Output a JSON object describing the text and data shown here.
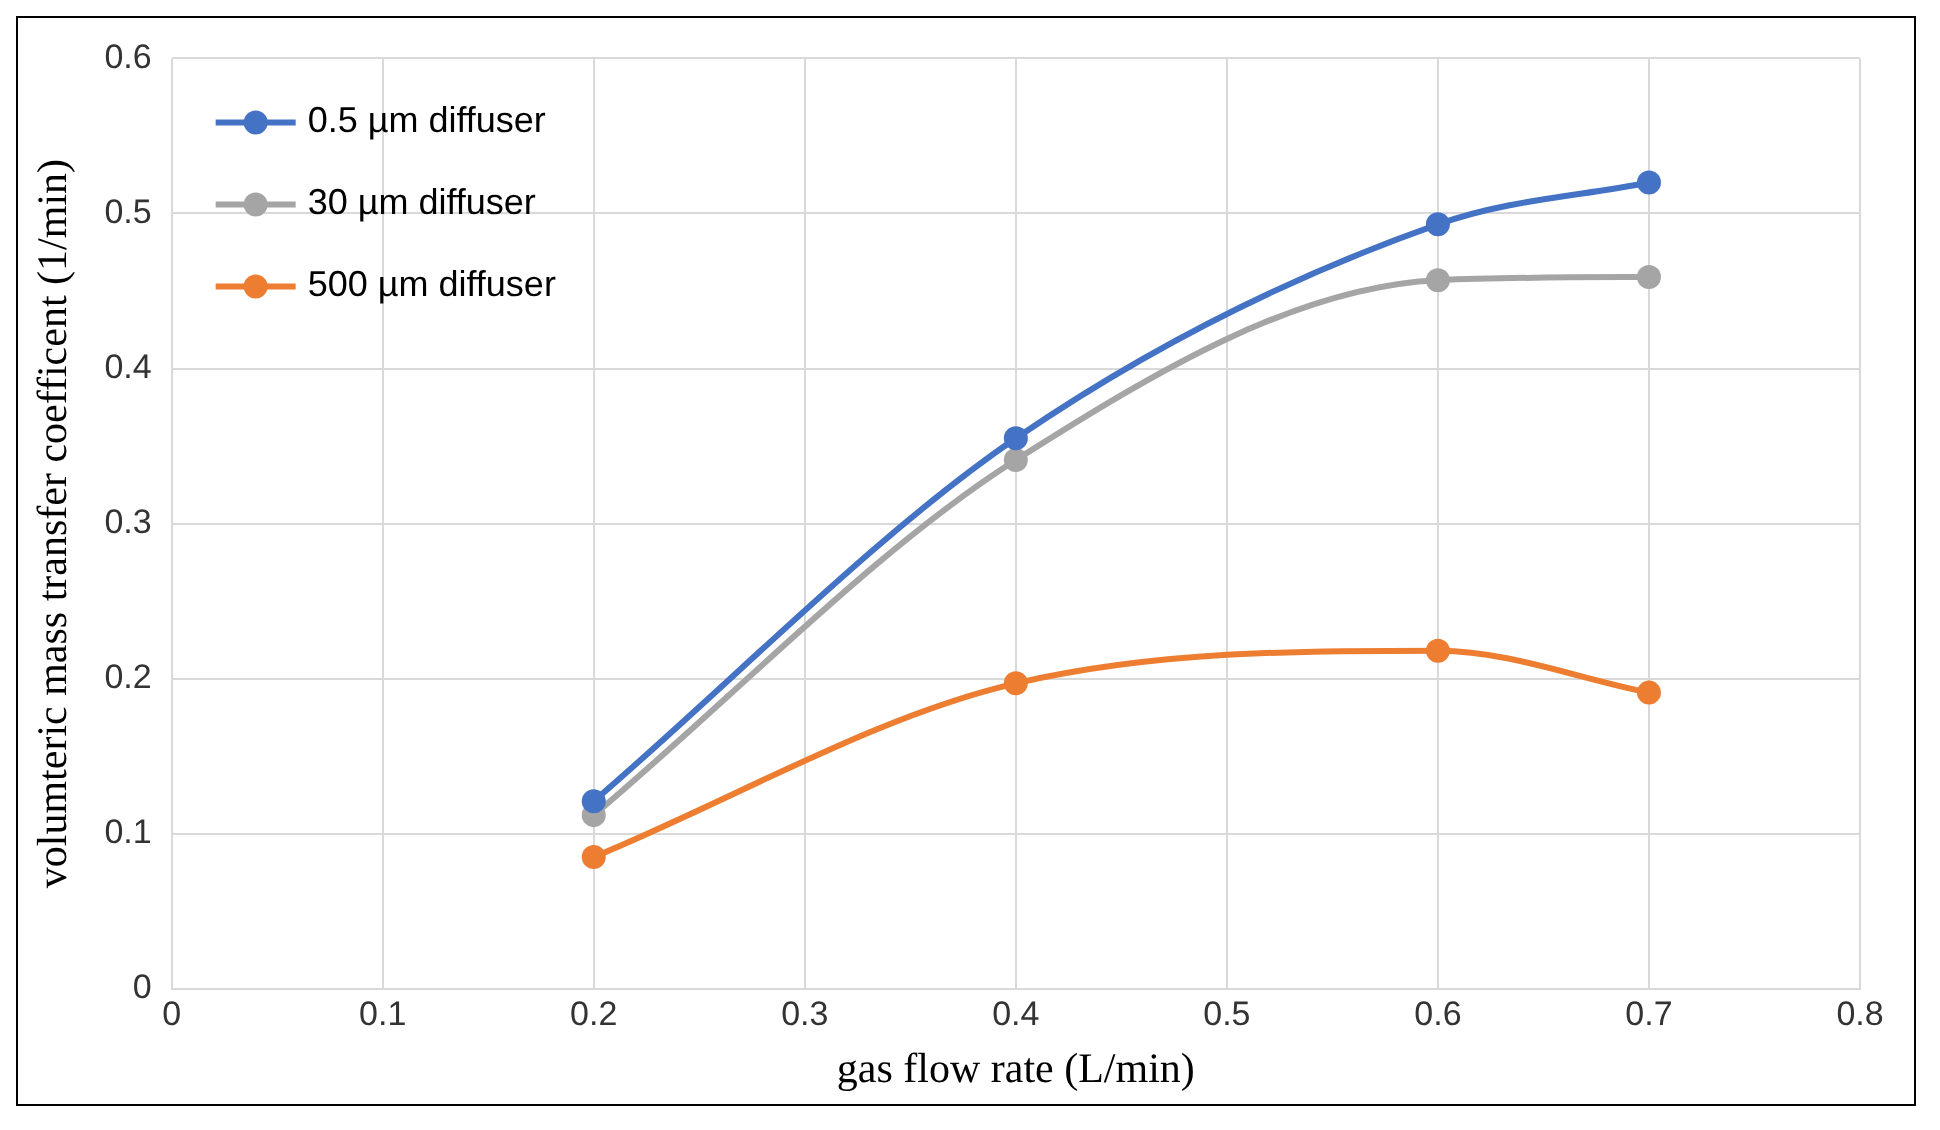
{
  "chart_data": {
    "type": "line",
    "xlabel": "gas flow rate (L/min)",
    "ylabel": "volumteric mass transfer coefficent (1/min)",
    "x": [
      0.2,
      0.4,
      0.6,
      0.7
    ],
    "series": [
      {
        "name": "0.5 µm diffuser",
        "color": "#4472c4",
        "values": [
          0.121,
          0.355,
          0.493,
          0.52
        ]
      },
      {
        "name": "30 µm diffuser",
        "color": "#a5a5a5",
        "values": [
          0.112,
          0.341,
          0.457,
          0.459
        ]
      },
      {
        "name": "500 µm diffuser",
        "color": "#ed7d31",
        "values": [
          0.085,
          0.197,
          0.218,
          0.191
        ]
      }
    ],
    "xlim": [
      0,
      0.8
    ],
    "xticks": [
      0,
      0.1,
      0.2,
      0.3,
      0.4,
      0.5,
      0.6,
      0.7,
      0.8
    ],
    "ylim": [
      0,
      0.6
    ],
    "yticks": [
      0,
      0.1,
      0.2,
      0.3,
      0.4,
      0.5,
      0.6
    ],
    "grid": true,
    "legend": "top left",
    "marker": "circle",
    "line_style": "solid"
  }
}
